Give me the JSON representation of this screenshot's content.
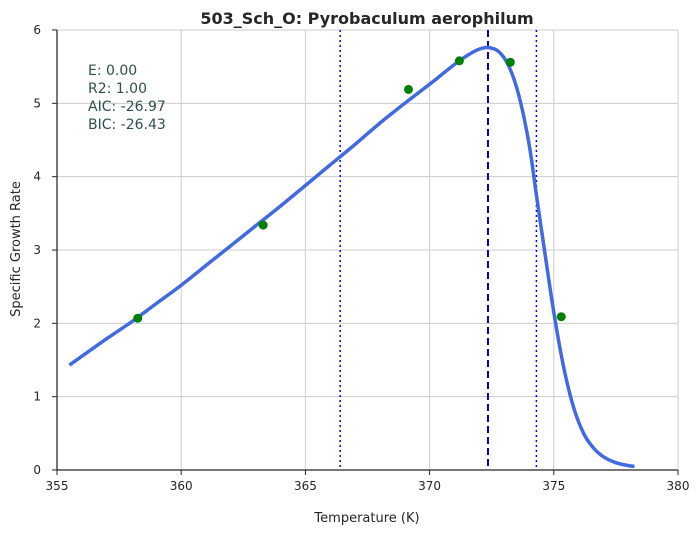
{
  "chart_data": {
    "type": "line",
    "title": "503_Sch_O: Pyrobaculum aerophilum",
    "xlabel": "Temperature (K)",
    "ylabel": "Specific Growth Rate",
    "xlim": [
      355,
      380
    ],
    "ylim": [
      0,
      6
    ],
    "xticks": [
      355,
      360,
      365,
      370,
      375,
      380
    ],
    "yticks": [
      0,
      1,
      2,
      3,
      4,
      5,
      6
    ],
    "grid": true,
    "fit_curve": {
      "x": [
        355.5,
        356.0,
        357.0,
        358.0,
        359.0,
        360.0,
        361.0,
        362.0,
        363.0,
        364.0,
        365.0,
        366.0,
        367.0,
        368.0,
        369.0,
        370.0,
        371.0,
        371.5,
        372.0,
        372.4,
        372.8,
        373.2,
        373.6,
        374.0,
        374.3,
        374.6,
        375.0,
        375.4,
        375.8,
        376.2,
        376.6,
        377.0,
        377.5,
        378.0,
        378.25
      ],
      "y": [
        1.43,
        1.55,
        1.79,
        2.02,
        2.27,
        2.52,
        2.79,
        3.06,
        3.33,
        3.6,
        3.88,
        4.16,
        4.44,
        4.73,
        5.0,
        5.26,
        5.53,
        5.65,
        5.74,
        5.76,
        5.7,
        5.5,
        5.1,
        4.45,
        3.75,
        3.05,
        2.15,
        1.4,
        0.85,
        0.5,
        0.3,
        0.18,
        0.1,
        0.06,
        0.05
      ],
      "color": "#4169e1"
    },
    "observed_points": {
      "x": [
        358.25,
        363.3,
        369.15,
        371.2,
        373.25,
        375.3
      ],
      "y": [
        2.07,
        3.34,
        5.19,
        5.58,
        5.56,
        2.09
      ],
      "color": "#008000"
    },
    "vlines": [
      {
        "x": 366.4,
        "style": "dotted",
        "color": "#0000ff"
      },
      {
        "x": 372.35,
        "style": "dashed",
        "color": "#0000cc"
      },
      {
        "x": 374.3,
        "style": "dotted",
        "color": "#0000ff"
      }
    ],
    "annotations": [
      "E:  0.00",
      "R2:  1.00",
      "AIC: -26.97",
      "BIC: -26.43"
    ]
  }
}
